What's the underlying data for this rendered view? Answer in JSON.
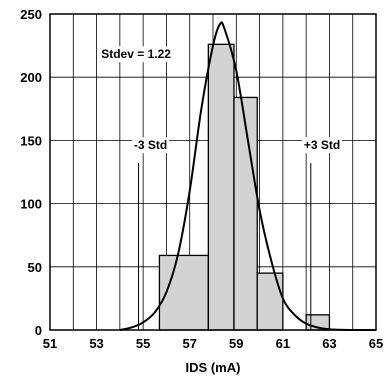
{
  "chart_data": {
    "type": "bar",
    "title": "",
    "xlabel": "IDS (mA)",
    "ylabel": "",
    "xlim": [
      51,
      65
    ],
    "ylim": [
      0,
      250
    ],
    "xticks": [
      51,
      53,
      55,
      57,
      59,
      61,
      63,
      65
    ],
    "yticks": [
      0,
      50,
      100,
      150,
      200,
      250
    ],
    "grid": true,
    "bins": [
      {
        "x0": 55.7,
        "x1": 57.8,
        "value": 59
      },
      {
        "x0": 57.8,
        "x1": 58.9,
        "value": 226
      },
      {
        "x0": 58.9,
        "x1": 59.9,
        "value": 184
      },
      {
        "x0": 59.9,
        "x1": 61.0,
        "value": 45
      },
      {
        "x0": 61.0,
        "x1": 62.0,
        "value": 0
      },
      {
        "x0": 62.0,
        "x1": 63.0,
        "value": 12
      }
    ],
    "curve": {
      "x": [
        54.0,
        54.5,
        55.0,
        55.5,
        56.0,
        56.5,
        57.0,
        57.5,
        58.0,
        58.3,
        58.5,
        59.0,
        59.5,
        60.0,
        60.5,
        61.0,
        61.5,
        62.0,
        62.5,
        63.0,
        64.0,
        65.0
      ],
      "y": [
        0,
        2,
        6,
        14,
        30,
        60,
        110,
        175,
        225,
        242,
        238,
        205,
        150,
        95,
        55,
        25,
        12,
        5,
        2,
        0.5,
        0,
        0
      ]
    },
    "annotations": [
      {
        "text": "Stdev = 1.22",
        "x": 53.2,
        "y": 215
      },
      {
        "text": "-3 Std",
        "x": 54.6,
        "y": 143,
        "line_x": 54.8,
        "line_y0": 0,
        "line_y1": 132
      },
      {
        "text": "+3 Std",
        "x": 61.9,
        "y": 143,
        "line_x": 62.2,
        "line_y0": 0,
        "line_y1": 132
      }
    ]
  }
}
